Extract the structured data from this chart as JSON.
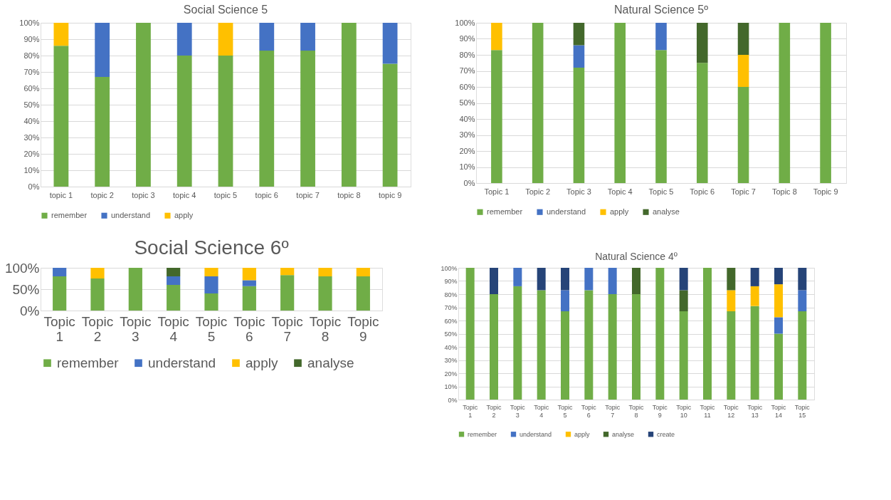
{
  "chart_data": [
    {
      "type": "bar",
      "stacked": true,
      "title": "Social Science 5",
      "legend": "bottom",
      "grid": "y",
      "categories": [
        "topic 1",
        "topic  2",
        "topic 3",
        "topic  4",
        "topic 5",
        "topic 6",
        "topic 7",
        "topic 8",
        "topic 9"
      ],
      "ylim": [
        0,
        100
      ],
      "yticks": [
        {
          "value": 0,
          "label": "0%"
        },
        {
          "value": 10,
          "label": "10%"
        },
        {
          "value": 20,
          "label": "20%"
        },
        {
          "value": 30,
          "label": "30%"
        },
        {
          "value": 40,
          "label": "40%"
        },
        {
          "value": 50,
          "label": "50%"
        },
        {
          "value": 60,
          "label": "60%"
        },
        {
          "value": 70,
          "label": "70%"
        },
        {
          "value": 80,
          "label": "80%"
        },
        {
          "value": 90,
          "label": "90%"
        },
        {
          "value": 100,
          "label": "100%"
        }
      ],
      "series": [
        {
          "name": "remember",
          "color": "#70ad47",
          "values": [
            86,
            67,
            100,
            80,
            80,
            83,
            83,
            100,
            75
          ]
        },
        {
          "name": "understand",
          "color": "#4472c4",
          "values": [
            null,
            33,
            null,
            20,
            null,
            17,
            17,
            null,
            25
          ]
        },
        {
          "name": "apply",
          "color": "#ffc000",
          "values": [
            14,
            null,
            null,
            null,
            20,
            null,
            null,
            null,
            null
          ]
        }
      ]
    },
    {
      "type": "bar",
      "stacked": true,
      "title": "Natural Science 5º",
      "legend": "bottom",
      "grid": "y",
      "categories": [
        "Topic 1",
        "Topic 2",
        "Topic 3",
        "Topic 4",
        "Topic 5",
        "Topic 6",
        "Topic 7",
        "Topic 8",
        "Topic 9"
      ],
      "ylim": [
        0,
        100
      ],
      "yticks": [
        {
          "value": 0,
          "label": "0%"
        },
        {
          "value": 10,
          "label": "10%"
        },
        {
          "value": 20,
          "label": "20%"
        },
        {
          "value": 30,
          "label": "30%"
        },
        {
          "value": 40,
          "label": "40%"
        },
        {
          "value": 50,
          "label": "50%"
        },
        {
          "value": 60,
          "label": "60%"
        },
        {
          "value": 70,
          "label": "70%"
        },
        {
          "value": 80,
          "label": "80%"
        },
        {
          "value": 90,
          "label": "90%"
        },
        {
          "value": 100,
          "label": "100%"
        }
      ],
      "series": [
        {
          "name": "remember",
          "color": "#70ad47",
          "values": [
            83,
            100,
            72,
            100,
            83,
            75,
            60,
            100,
            100
          ]
        },
        {
          "name": "understand",
          "color": "#4472c4",
          "values": [
            null,
            null,
            14,
            null,
            17,
            null,
            null,
            null,
            null
          ]
        },
        {
          "name": "apply",
          "color": "#ffc000",
          "values": [
            17,
            null,
            null,
            null,
            null,
            null,
            20,
            null,
            null
          ]
        },
        {
          "name": "analyse",
          "color": "#43682b",
          "values": [
            null,
            null,
            14,
            null,
            null,
            25,
            20,
            null,
            null
          ]
        }
      ]
    },
    {
      "type": "bar",
      "stacked": true,
      "title": "Social Science 6º",
      "legend": "bottom",
      "grid": "y",
      "categories": [
        "Topic 1",
        "Topic 2",
        "Topic 3",
        "Topic 4",
        "Topic 5",
        "Topic 6",
        "Topic 7",
        "Topic 8",
        "Topic 9"
      ],
      "ylim": [
        0,
        100
      ],
      "yticks": [
        {
          "value": 0,
          "label": "0%"
        },
        {
          "value": 50,
          "label": "50%"
        },
        {
          "value": 100,
          "label": "100%"
        }
      ],
      "series": [
        {
          "name": "remember",
          "color": "#70ad47",
          "values": [
            80,
            75,
            100,
            60,
            40,
            57,
            83,
            80,
            80
          ]
        },
        {
          "name": "understand",
          "color": "#4472c4",
          "values": [
            20,
            null,
            null,
            20,
            40,
            14,
            null,
            null,
            null
          ]
        },
        {
          "name": "apply",
          "color": "#ffc000",
          "values": [
            null,
            25,
            null,
            null,
            20,
            29,
            17,
            20,
            20
          ]
        },
        {
          "name": "analyse",
          "color": "#43682b",
          "values": [
            null,
            null,
            null,
            20,
            null,
            null,
            null,
            null,
            null
          ]
        }
      ]
    },
    {
      "type": "bar",
      "stacked": true,
      "title": "Natural Science 4º",
      "legend": "bottom",
      "grid": "y",
      "categories": [
        "Topic 1",
        "Topic 2",
        "Topic 3",
        "Topic 4",
        "Topic 5",
        "Topic 6",
        "Topic 7",
        "Topic 8",
        "Topic 9",
        "Topic 10",
        "Topic 11",
        "Topic 12",
        "Topic 13",
        "Topic 14",
        "Topic 15"
      ],
      "ylim": [
        0,
        100
      ],
      "yticks": [
        {
          "value": 0,
          "label": "0%"
        },
        {
          "value": 10,
          "label": "10%"
        },
        {
          "value": 20,
          "label": "20%"
        },
        {
          "value": 30,
          "label": "30%"
        },
        {
          "value": 40,
          "label": "40%"
        },
        {
          "value": 50,
          "label": "50%"
        },
        {
          "value": 60,
          "label": "60%"
        },
        {
          "value": 70,
          "label": "70%"
        },
        {
          "value": 80,
          "label": "80%"
        },
        {
          "value": 90,
          "label": "90%"
        },
        {
          "value": 100,
          "label": "100%"
        }
      ],
      "series": [
        {
          "name": "remember",
          "color": "#70ad47",
          "values": [
            100,
            80,
            86,
            83,
            67,
            83,
            80,
            80,
            100,
            67,
            100,
            67,
            71,
            50,
            67
          ]
        },
        {
          "name": "understand",
          "color": "#4472c4",
          "values": [
            null,
            null,
            14,
            null,
            16,
            17,
            20,
            null,
            null,
            null,
            null,
            null,
            null,
            12.5,
            16
          ]
        },
        {
          "name": "apply",
          "color": "#ffc000",
          "values": [
            null,
            null,
            null,
            null,
            null,
            null,
            null,
            null,
            null,
            null,
            null,
            16,
            15,
            25,
            null
          ]
        },
        {
          "name": "analyse",
          "color": "#43682b",
          "values": [
            null,
            null,
            null,
            null,
            null,
            null,
            null,
            20,
            null,
            16,
            null,
            17,
            null,
            null,
            null
          ]
        },
        {
          "name": "create",
          "color": "#264478",
          "values": [
            null,
            20,
            null,
            17,
            17,
            null,
            null,
            null,
            null,
            17,
            null,
            null,
            14,
            12.5,
            17
          ]
        }
      ]
    }
  ]
}
